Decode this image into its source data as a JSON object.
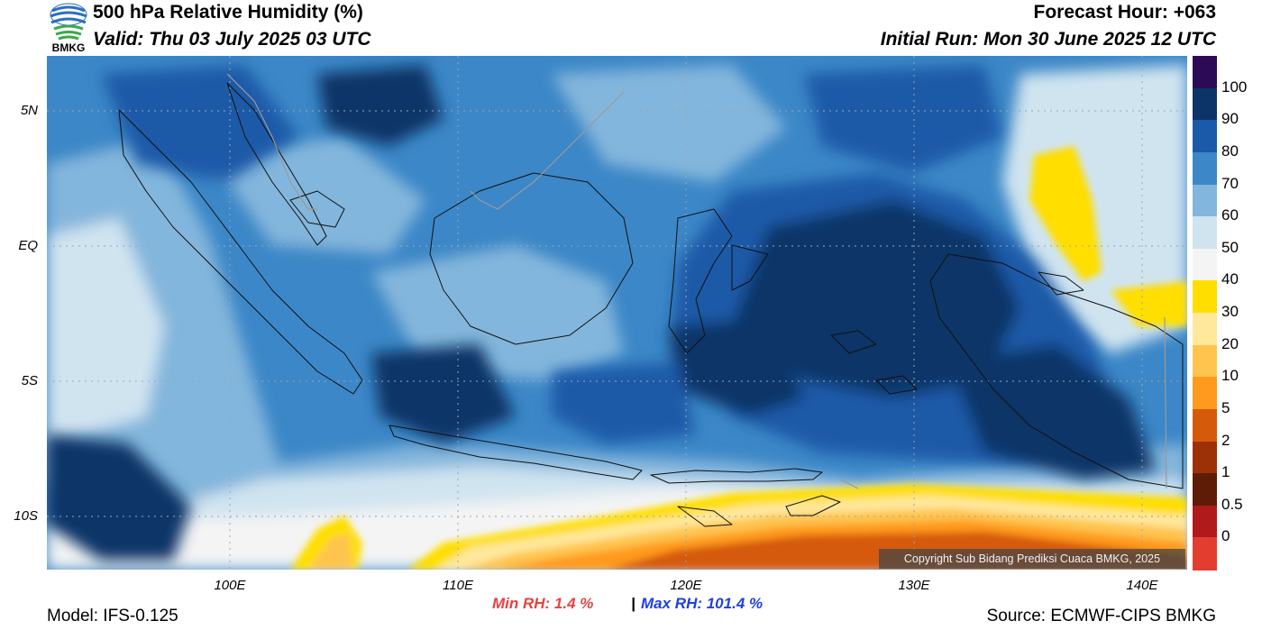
{
  "header": {
    "title": "500 hPa Relative Humidity (%)",
    "valid": "Valid: Thu 03 July 2025 03 UTC",
    "forecast_hour": "Forecast Hour: +063",
    "initial_run": "Initial Run: Mon 30 June 2025 12 UTC"
  },
  "logo": {
    "text": "BMKG",
    "colors": [
      "#2a6fc4",
      "#3aa84a"
    ]
  },
  "map": {
    "lat_labels": [
      "5N",
      "EQ",
      "5S",
      "10S"
    ],
    "lon_labels": [
      "100E",
      "110E",
      "120E",
      "130E",
      "140E"
    ],
    "grid": "dotted",
    "extent": {
      "lon": [
        92,
        142
      ],
      "lat": [
        -12,
        7
      ]
    },
    "copyright": "Copyright Sub Bidang Prediksi Cuaca BMKG, 2025"
  },
  "colorbar": {
    "labels": [
      "100",
      "90",
      "80",
      "70",
      "60",
      "50",
      "40",
      "30",
      "20",
      "10",
      "5",
      "2",
      "1",
      "0.5",
      "0"
    ],
    "colors": [
      "#2d0a55",
      "#0d3468",
      "#1a5aa8",
      "#3c87c7",
      "#83b6dc",
      "#d0e4f0",
      "#f4f4f4",
      "#ffde00",
      "#ffe79b",
      "#ffc44e",
      "#ff9a1e",
      "#d55a0a",
      "#9c3006",
      "#5e1c06",
      "#b01a1a",
      "#e23d2f"
    ]
  },
  "stats": {
    "min": "Min RH:   1.4 %",
    "separator": "|",
    "max": "Max RH: 101.4 %",
    "min_color": "#e84141",
    "max_color": "#1f3fe0"
  },
  "footer": {
    "model": "Model: IFS-0.125",
    "source": "Source: ECMWF-CIPS BMKG"
  }
}
